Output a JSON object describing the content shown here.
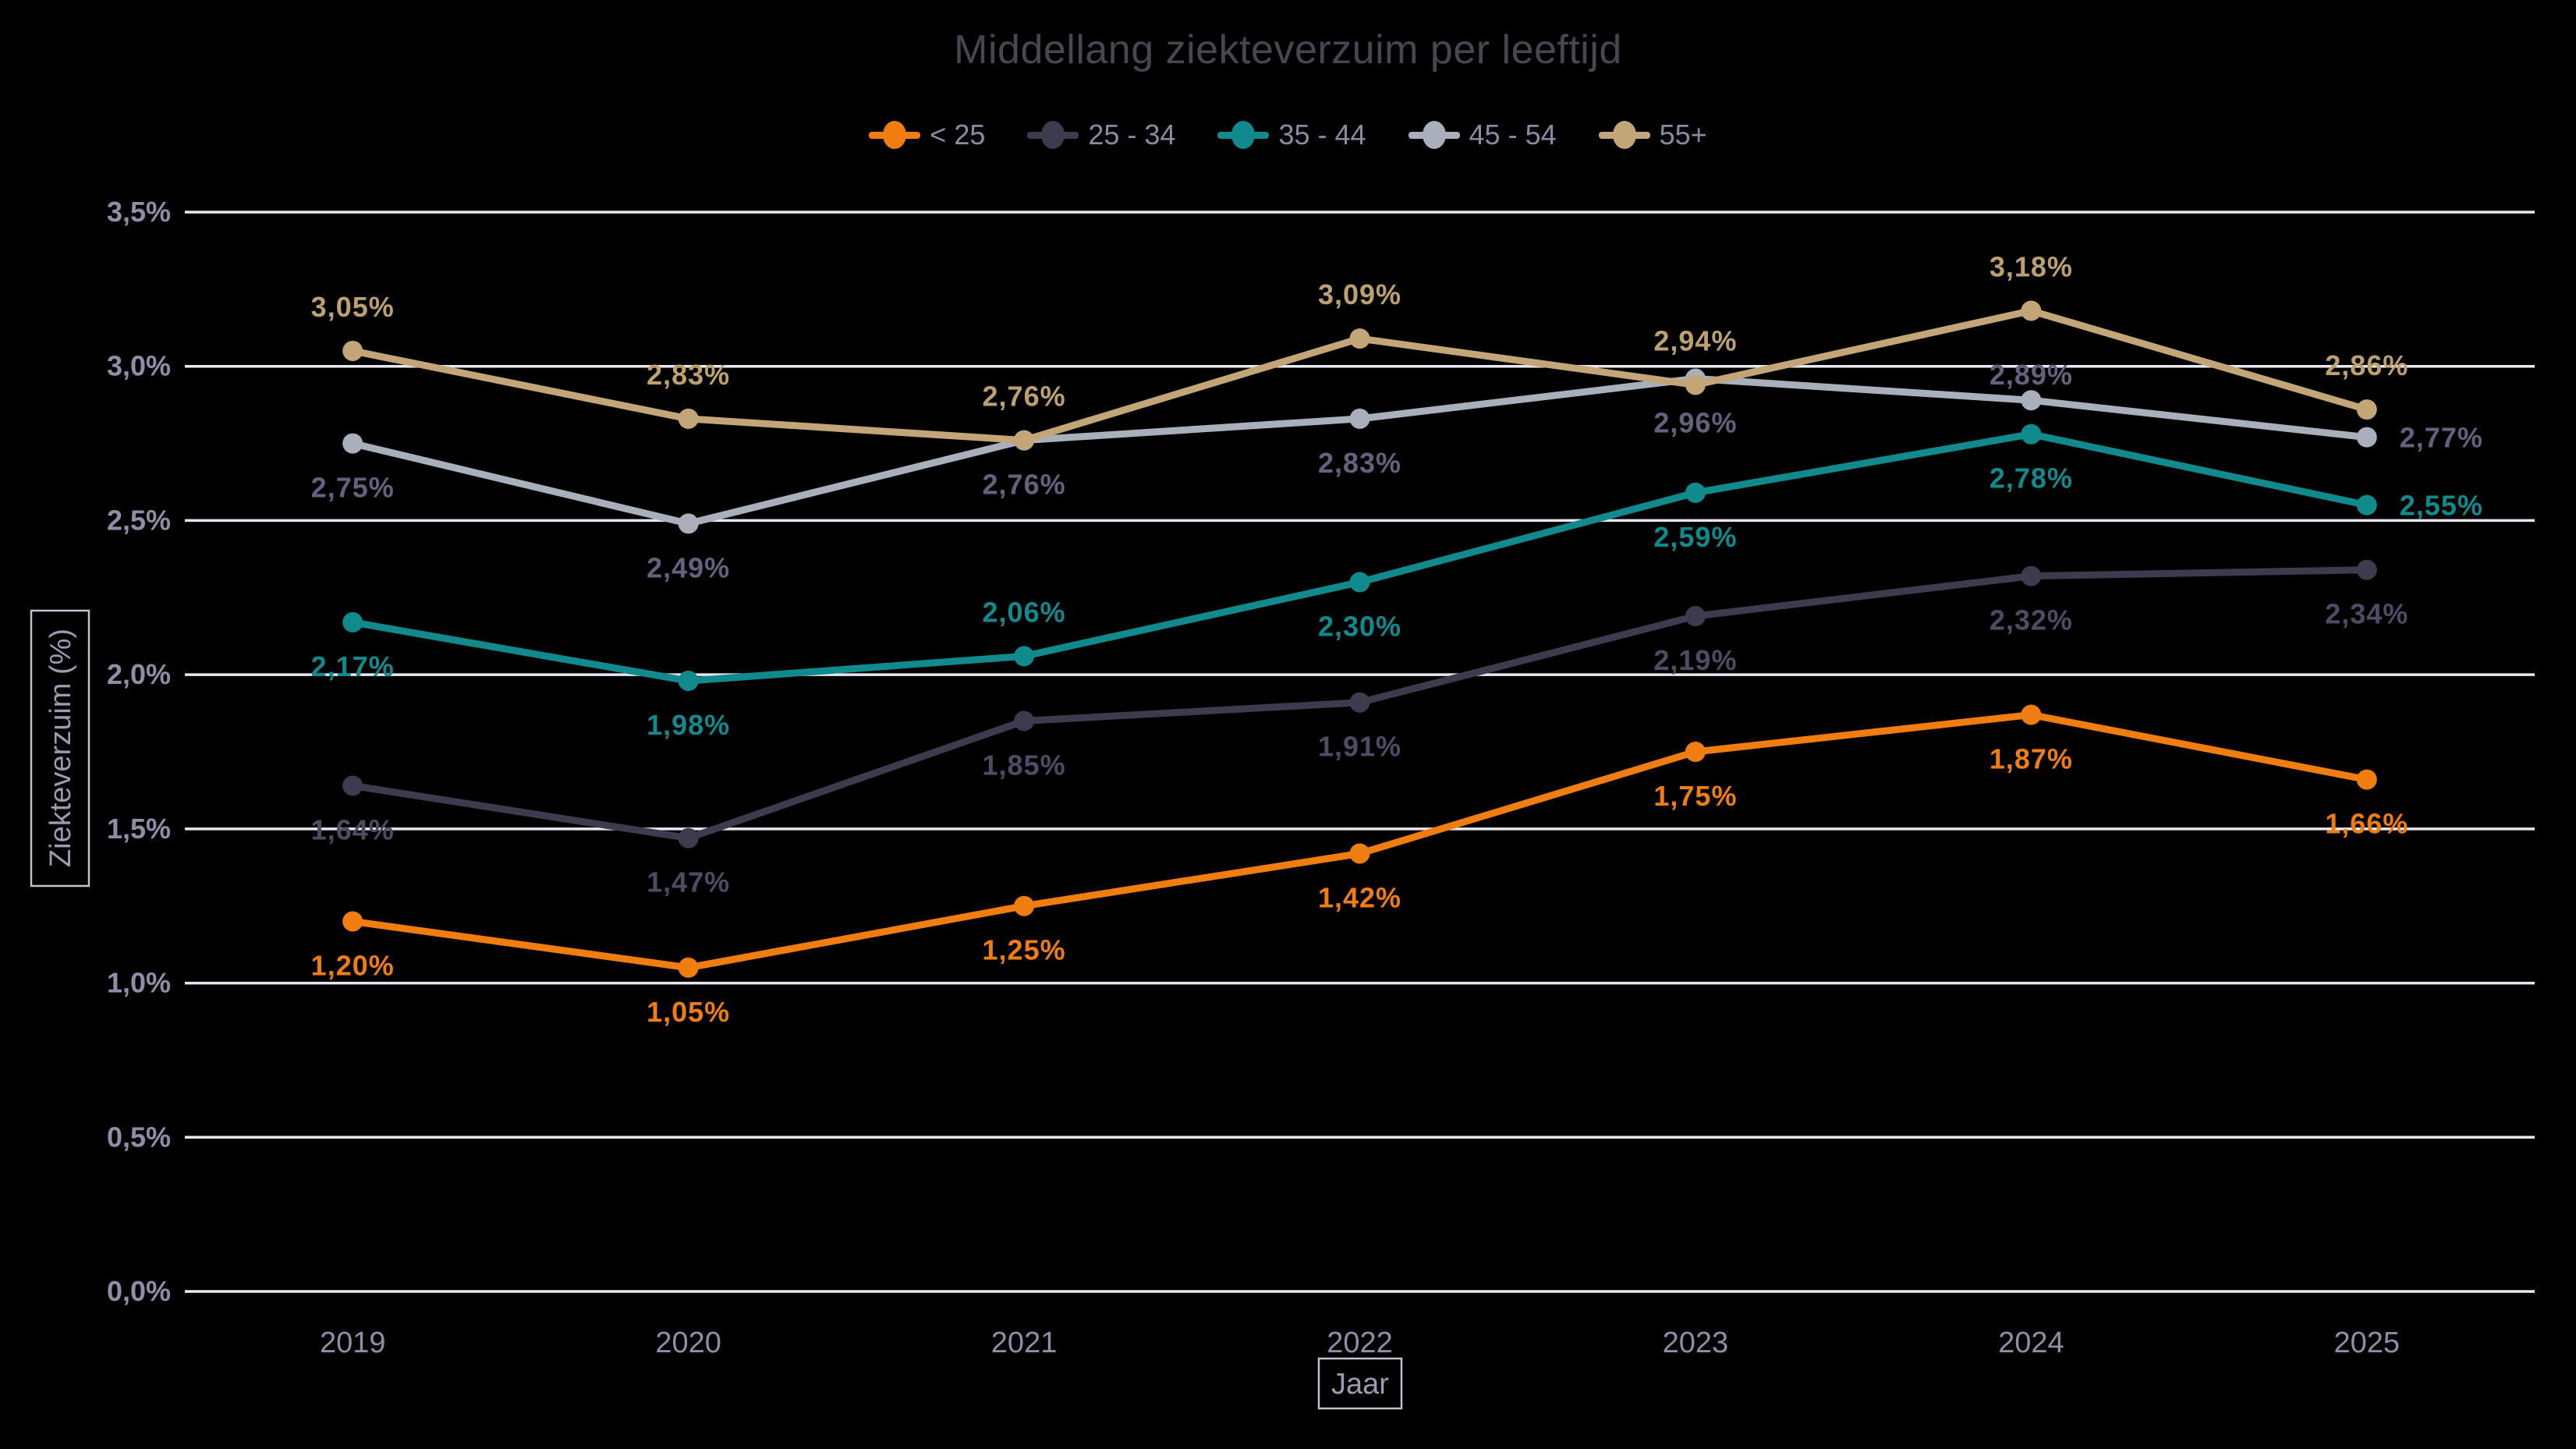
{
  "page": {
    "background": "#000000"
  },
  "chart_data": {
    "type": "line",
    "title": "Middellang ziekteverzuim per leeftijd",
    "xlabel": "Jaar",
    "ylabel": "Ziekteverzuim (%)",
    "categories": [
      "2019",
      "2020",
      "2021",
      "2022",
      "2023",
      "2024",
      "2025"
    ],
    "ylim": [
      0,
      3.5
    ],
    "grid": true,
    "legend_position": "top",
    "y_ticks": [
      {
        "v": 0.0,
        "label": "0,0%"
      },
      {
        "v": 0.5,
        "label": "0,5%"
      },
      {
        "v": 1.0,
        "label": "1,0%"
      },
      {
        "v": 1.5,
        "label": "1,5%"
      },
      {
        "v": 2.0,
        "label": "2,0%"
      },
      {
        "v": 2.5,
        "label": "2,5%"
      },
      {
        "v": 3.0,
        "label": "3,0%"
      },
      {
        "v": 3.5,
        "label": "3,5%"
      }
    ],
    "series": [
      {
        "name": "< 25",
        "color": "#EF7D0F",
        "label_color": "#EF7D0F",
        "values": [
          1.2,
          1.05,
          1.25,
          1.42,
          1.75,
          1.87,
          1.66
        ],
        "labels": [
          "1,20%",
          "1,05%",
          "1,25%",
          "1,42%",
          "1,75%",
          "1,87%",
          "1,66%"
        ],
        "label_pos": [
          "below",
          "below",
          "below",
          "below",
          "below",
          "below",
          "below"
        ]
      },
      {
        "name": "25 - 34",
        "color": "#3C3C4E",
        "label_color": "#4C4C64",
        "values": [
          1.64,
          1.47,
          1.85,
          1.91,
          2.19,
          2.32,
          2.34
        ],
        "labels": [
          "1,64%",
          "1,47%",
          "1,85%",
          "1,91%",
          "2,19%",
          "2,32%",
          "2,34%"
        ],
        "label_pos": [
          "below",
          "below",
          "below",
          "below",
          "below",
          "below",
          "below"
        ]
      },
      {
        "name": "35 - 44",
        "color": "#108A8C",
        "label_color": "#108A8C",
        "values": [
          2.17,
          1.98,
          2.06,
          2.3,
          2.59,
          2.78,
          2.55
        ],
        "labels": [
          "2,17%",
          "1,98%",
          "2,06%",
          "2,30%",
          "2,59%",
          "2,78%",
          "2,55%"
        ],
        "label_pos": [
          "below",
          "below",
          "above",
          "below",
          "below",
          "below",
          "right"
        ]
      },
      {
        "name": "45 - 54",
        "color": "#A9AFBB",
        "label_color": "#62627F",
        "values": [
          2.75,
          2.49,
          2.76,
          2.83,
          2.96,
          2.89,
          2.77
        ],
        "labels": [
          "2,75%",
          "2,49%",
          "2,76%",
          "2,83%",
          "2,96%",
          "2,89%",
          "2,77%"
        ],
        "label_pos": [
          "below",
          "below",
          "below",
          "below",
          "below",
          "above_close",
          "right"
        ]
      },
      {
        "name": "55+",
        "color": "#C4A577",
        "label_color": "#BDA06F",
        "values": [
          3.05,
          2.83,
          2.76,
          3.09,
          2.94,
          3.18,
          2.86
        ],
        "labels": [
          "3,05%",
          "2,83%",
          "2,76%",
          "3,09%",
          "2,94%",
          "3,18%",
          "2,86%"
        ],
        "label_pos": [
          "above",
          "above",
          "above",
          "above",
          "above",
          "above",
          "above"
        ]
      }
    ],
    "axis_color": "#8E8EA8",
    "grid_color": "#E8E8F0",
    "title_color": "#474752",
    "legend_text_color": "#8A8AA4",
    "box_border_color": "#C2C2CE",
    "box_text_color": "#9B9BB2"
  }
}
